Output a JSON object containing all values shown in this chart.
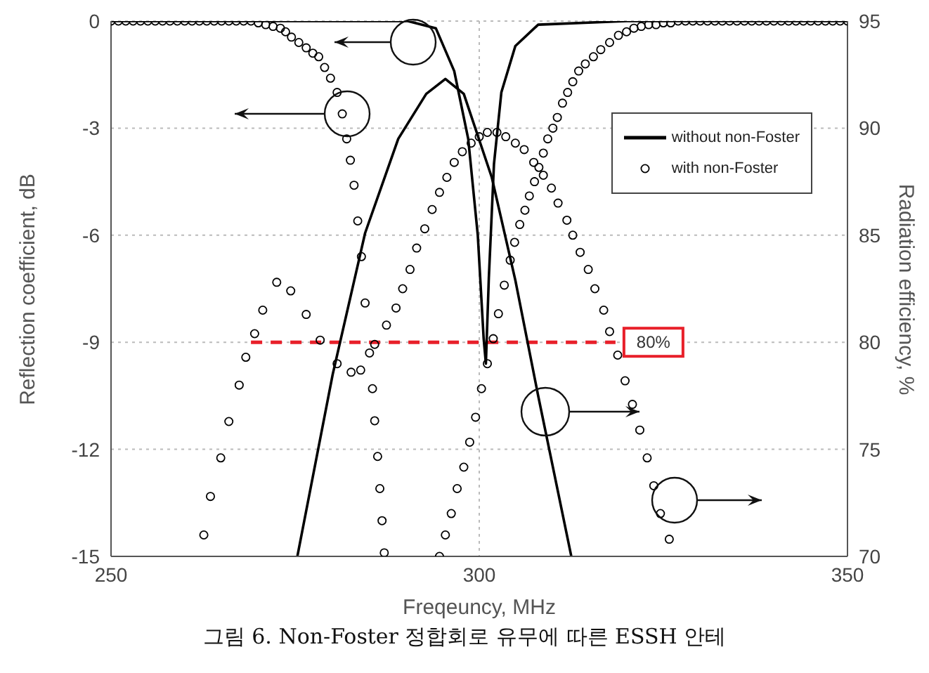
{
  "chart_data": {
    "type": "line",
    "xlabel": "Freqeuncy, MHz",
    "ylabel": "Reflection coefficient, dB",
    "y2label": "Radiation efficiency, %",
    "xlim": [
      250,
      350
    ],
    "xticks": [
      250,
      300,
      350
    ],
    "ylim": [
      -15,
      0
    ],
    "yticks": [
      -15,
      -12,
      -9,
      -6,
      -3,
      0
    ],
    "y2lim": [
      70,
      95
    ],
    "y2ticks": [
      70,
      75,
      80,
      85,
      90,
      95
    ],
    "grid": true,
    "legend": "top right",
    "series": [
      {
        "name": "without non-Foster",
        "type": "line",
        "color": "#000000",
        "x": [
          250,
          270,
          290.3,
          294.1,
          296.6,
          298.5,
          299.8,
          300.6,
          300.9,
          301.3,
          302,
          303,
          304.9,
          308,
          320,
          350
        ],
        "values": [
          0,
          0,
          0,
          -0.2,
          -1.4,
          -3.3,
          -6,
          -8.9,
          -9.6,
          -7.2,
          -4,
          -2,
          -0.7,
          -0.1,
          0,
          0
        ]
      },
      {
        "type": "line",
        "axis": "y2",
        "color": "#000000",
        "x": [
          275.3,
          280.1,
          284.5,
          289,
          292.8,
          295.4,
          297.9,
          301.7,
          304.9,
          308,
          312.5
        ],
        "values": [
          70,
          78.5,
          85.1,
          89.5,
          91.6,
          92.3,
          91.6,
          87.7,
          82.9,
          77.5,
          70
        ]
      },
      {
        "name": "with non-Foster",
        "type": "scatter",
        "marker": "circle",
        "color": "#000000",
        "x": [
          250,
          251,
          252,
          253,
          254,
          255,
          256,
          257,
          258,
          259,
          260,
          261,
          262,
          263,
          264,
          265,
          266,
          267,
          268,
          269,
          270,
          271,
          272,
          273,
          273.7,
          274.5,
          275.5,
          276.5,
          277.4,
          278.2,
          279,
          279.8,
          280.7,
          281.4,
          282,
          282.5,
          283,
          283.5,
          284,
          284.5,
          285.1,
          285.5,
          285.8,
          286.2,
          286.5,
          286.8,
          287.1,
          294.6,
          295.4,
          296.2,
          297,
          297.9,
          298.7,
          299.5,
          300.3,
          301.1,
          301.9,
          302.6,
          303.4,
          304.2,
          304.8,
          305.5,
          306.2,
          306.8,
          307.5,
          308.1,
          308.7,
          309.3,
          310,
          310.6,
          311.3,
          312,
          312.7,
          313.5,
          314.4,
          315.5,
          316.5,
          317.7,
          318.9,
          320,
          321,
          322,
          323,
          324,
          325,
          326,
          327,
          328,
          329,
          330,
          331,
          332,
          333,
          334,
          335,
          336,
          337,
          338,
          339,
          340,
          341,
          342,
          343,
          344,
          345,
          346,
          347,
          348,
          349,
          350
        ],
        "values": [
          0,
          0,
          0,
          0,
          0,
          0,
          0,
          0,
          0,
          0,
          0,
          0,
          0,
          0,
          0,
          0,
          0,
          0,
          0,
          0,
          -0.05,
          -0.1,
          -0.15,
          -0.2,
          -0.3,
          -0.45,
          -0.6,
          -0.75,
          -0.9,
          -1,
          -1.3,
          -1.6,
          -2,
          -2.6,
          -3.3,
          -3.9,
          -4.6,
          -5.6,
          -6.6,
          -7.9,
          -9.3,
          -10.3,
          -11.2,
          -12.2,
          -13.1,
          -14,
          -14.9,
          -15,
          -14.4,
          -13.8,
          -13.1,
          -12.5,
          -11.8,
          -11.1,
          -10.3,
          -9.6,
          -8.9,
          -8.2,
          -7.4,
          -6.7,
          -6.2,
          -5.7,
          -5.3,
          -4.9,
          -4.5,
          -4.1,
          -3.7,
          -3.3,
          -3,
          -2.7,
          -2.3,
          -2,
          -1.7,
          -1.4,
          -1.2,
          -1,
          -0.8,
          -0.6,
          -0.4,
          -0.3,
          -0.2,
          -0.15,
          -0.1,
          -0.1,
          -0.05,
          -0.05,
          0,
          0,
          0,
          0,
          0,
          0,
          0,
          0,
          0,
          0,
          0,
          0,
          0,
          0,
          0,
          0,
          0,
          0,
          0,
          0,
          0,
          0,
          0,
          0
        ]
      },
      {
        "type": "scatter",
        "marker": "circle",
        "axis": "y2",
        "color": "#000000",
        "x": [
          262.6,
          263.5,
          264.9,
          266,
          267.4,
          268.3,
          269.5,
          270.6,
          272.5,
          274.4,
          276.5,
          278.4,
          280.7,
          282.6,
          283.9,
          285.8,
          287.4,
          288.7,
          289.6,
          290.6,
          291.5,
          292.6,
          293.6,
          294.6,
          295.6,
          296.6,
          297.7,
          298.9,
          300,
          301.1,
          302.4,
          303.6,
          304.9,
          306.1,
          307.4,
          308.7,
          309.8,
          310.7,
          311.9,
          312.7,
          313.7,
          314.8,
          315.7,
          316.9,
          317.7,
          318.8,
          319.8,
          320.8,
          321.8,
          322.8,
          323.7,
          324.6,
          325.8
        ],
        "values": [
          71,
          72.8,
          74.6,
          76.3,
          78,
          79.3,
          80.4,
          81.5,
          82.8,
          82.4,
          81.3,
          80.1,
          79,
          78.6,
          78.7,
          79.9,
          80.8,
          81.6,
          82.5,
          83.4,
          84.4,
          85.3,
          86.2,
          87,
          87.7,
          88.4,
          88.9,
          89.3,
          89.6,
          89.8,
          89.8,
          89.6,
          89.3,
          89,
          88.4,
          87.8,
          87.2,
          86.5,
          85.7,
          85,
          84.2,
          83.4,
          82.5,
          81.5,
          80.5,
          79.4,
          78.2,
          77.1,
          75.9,
          74.6,
          73.3,
          72,
          70.8
        ]
      }
    ],
    "ref_lines": [
      {
        "axis": "y2",
        "value": 80,
        "label": "80%",
        "color": "#e8202a",
        "line_style": "dashed"
      }
    ],
    "annotations": [
      "그림 6. Non-Foster 정합회로 유무에 따른 ESSH 안테"
    ]
  }
}
